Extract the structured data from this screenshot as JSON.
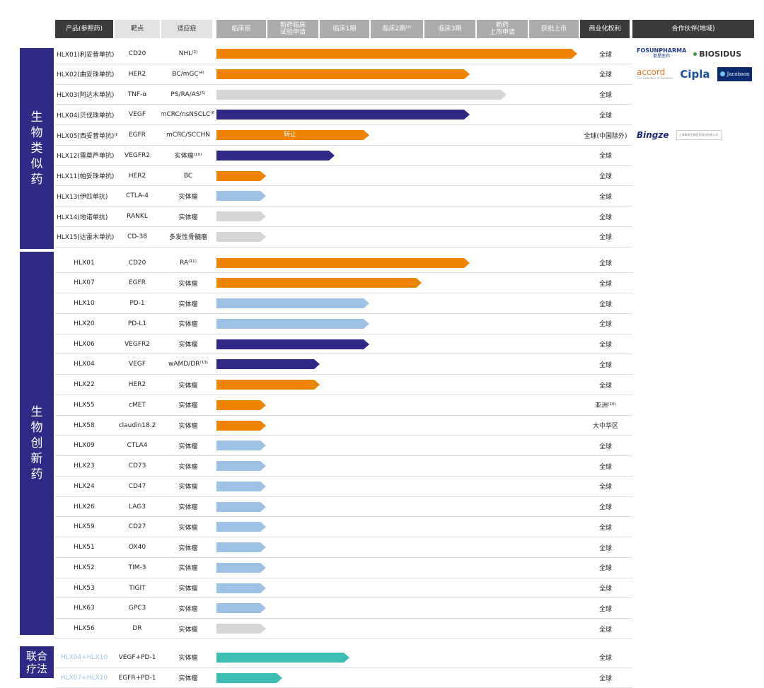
{
  "headers": [
    "产品(参照药)",
    "靶点",
    "适应症",
    "临床前",
    "新药临床\n试验申请",
    "临床1期",
    "临床2期⁽³⁾",
    "临床3期",
    "新药\n上市申请",
    "获批上市",
    "商业化权利",
    "合作伙伴(地域)"
  ],
  "categories": [
    {
      "name": "生物类似药",
      "chars": [
        "生",
        "物",
        "类",
        "似",
        "药"
      ]
    },
    {
      "name": "生物创新药",
      "chars": [
        "生",
        "物",
        "创",
        "新",
        "药"
      ]
    },
    {
      "name": "联合疗法",
      "chars": [
        "联合",
        "疗法"
      ]
    }
  ],
  "colors": {
    "orange": "#f08300",
    "navy": "#2f2887",
    "lgray": "#d5d5d5",
    "lblue": "#9ec2e6",
    "teal": "#3ebdb4",
    "category_bg": "#2e2a85",
    "combo_product_text": "#9ec2e6"
  },
  "rows": [
    {
      "product": "HLX01(利妥昔单抗)",
      "target": "CD20",
      "indication": "NHL⁽²⁾",
      "stage": 7,
      "color": "orange",
      "rights": "全球",
      "partner": "fosun_biosidus"
    },
    {
      "product": "HLX02(曲妥珠单抗)",
      "target": "HER2",
      "indication": "BC/mGC⁽⁴⁾",
      "stage": 5,
      "color": "orange",
      "rights": "全球",
      "partner": "accord_cipla_jacobson"
    },
    {
      "product": "HLX03(阿达木单抗)",
      "target": "TNF-α",
      "indication": "PS/RA/AS⁽⁵⁾",
      "stage": 6,
      "color": "lgray",
      "rights": "全球"
    },
    {
      "product": "HLX04(贝伐珠单抗)",
      "target": "VEGF",
      "indication": "mCRC/nsNSCLC⁽⁶⁾",
      "stage": 5,
      "color": "navy",
      "rights": "全球"
    },
    {
      "product": "HLX05(西妥昔单抗)⁽⁸⁾",
      "target": "EGFR",
      "indication": "mCRC/SCCHN",
      "stage": 3,
      "color": "orange",
      "rights": "全球(中国除外)",
      "bar_label": "转让",
      "partner": "bingze"
    },
    {
      "product": "HLX12(雷莫芦单抗)",
      "target": "VEGFR2",
      "indication": "实体瘤⁽¹⁰⁾",
      "stage": 2.3,
      "color": "navy",
      "rights": "全球"
    },
    {
      "product": "HLX11(帕妥珠单抗)",
      "target": "HER2",
      "indication": "BC",
      "stage": 1,
      "color": "orange",
      "rights": "全球"
    },
    {
      "product": "HLX13(伊匹单抗)",
      "target": "CTLA-4",
      "indication": "实体瘤",
      "stage": 1,
      "color": "lblue",
      "rights": "全球"
    },
    {
      "product": "HLX14(地诺单抗)",
      "target": "RANKL",
      "indication": "实体瘤",
      "stage": 1,
      "color": "lgray",
      "rights": "全球"
    },
    {
      "product": "HLX15(达雷木单抗)",
      "target": "CD-38",
      "indication": "多发性骨髓瘤",
      "stage": 1,
      "color": "lgray",
      "rights": "全球"
    },
    {
      "product": "HLX01",
      "target": "CD20",
      "indication": "RA⁽¹¹⁾",
      "stage": 5,
      "color": "orange",
      "rights": "全球"
    },
    {
      "product": "HLX07",
      "target": "EGFR",
      "indication": "实体瘤",
      "stage": 4,
      "color": "orange",
      "rights": "全球"
    },
    {
      "product": "HLX10",
      "target": "PD-1",
      "indication": "实体瘤",
      "stage": 3,
      "color": "lblue",
      "rights": "全球"
    },
    {
      "product": "HLX20",
      "target": "PD-L1",
      "indication": "实体瘤",
      "stage": 3,
      "color": "lblue",
      "rights": "全球"
    },
    {
      "product": "HLX06",
      "target": "VEGFR2",
      "indication": "实体瘤",
      "stage": 3,
      "color": "navy",
      "rights": "全球"
    },
    {
      "product": "HLX04",
      "target": "VEGF",
      "indication": "wAMD/DR⁽¹³⁾",
      "stage": 2,
      "color": "navy",
      "rights": "全球"
    },
    {
      "product": "HLX22",
      "target": "HER2",
      "indication": "实体瘤",
      "stage": 2,
      "color": "orange",
      "rights": "全球"
    },
    {
      "product": "HLX55",
      "target": "cMET",
      "indication": "实体瘤",
      "stage": 1,
      "color": "orange",
      "rights": "亚洲⁽¹⁶⁾"
    },
    {
      "product": "HLX58",
      "target": "claudin18.2",
      "indication": "实体瘤",
      "stage": 1,
      "color": "orange",
      "rights": "大中华区"
    },
    {
      "product": "HLX09",
      "target": "CTLA4",
      "indication": "实体瘤",
      "stage": 1,
      "color": "lblue",
      "rights": "全球"
    },
    {
      "product": "HLX23",
      "target": "CD73",
      "indication": "实体瘤",
      "stage": 1,
      "color": "lblue",
      "rights": "全球"
    },
    {
      "product": "HLX24",
      "target": "CD47",
      "indication": "实体瘤",
      "stage": 1,
      "color": "lblue",
      "rights": "全球"
    },
    {
      "product": "HLX26",
      "target": "LAG3",
      "indication": "实体瘤",
      "stage": 1,
      "color": "lblue",
      "rights": "全球"
    },
    {
      "product": "HLX59",
      "target": "CD27",
      "indication": "实体瘤",
      "stage": 1,
      "color": "lblue",
      "rights": "全球"
    },
    {
      "product": "HLX51",
      "target": "OX40",
      "indication": "实体瘤",
      "stage": 1,
      "color": "lblue",
      "rights": "全球"
    },
    {
      "product": "HLX52",
      "target": "TIM-3",
      "indication": "实体瘤",
      "stage": 1,
      "color": "lblue",
      "rights": "全球"
    },
    {
      "product": "HLX53",
      "target": "TIGIT",
      "indication": "实体瘤",
      "stage": 1,
      "color": "lblue",
      "rights": "全球"
    },
    {
      "product": "HLX63",
      "target": "GPC3",
      "indication": "实体瘤",
      "stage": 1,
      "color": "lblue",
      "rights": "全球"
    },
    {
      "product": "HLX56",
      "target": "DR",
      "indication": "实体瘤",
      "stage": 1,
      "color": "lgray",
      "rights": "全球"
    },
    {
      "product": "HLX04+HLX10",
      "target": "VEGF+PD-1",
      "indication": "实体瘤",
      "stage": 2.6,
      "color": "teal",
      "rights": "全球",
      "combo": true
    },
    {
      "product": "HLX07+HLX10",
      "target": "EGFR+PD-1",
      "indication": "实体瘤",
      "stage": 1.3,
      "color": "teal",
      "rights": "全球",
      "combo": true
    }
  ],
  "partners": {
    "fosun_biosidus": {
      "fosun_line1": "FOSUNPHARMA",
      "fosun_line2": "复星医药",
      "biosidus": "BIOSIDUS"
    },
    "accord_cipla_jacobson": {
      "accord": "accord",
      "accord_sub": "The Evolution of Generics",
      "cipla": "Cipla",
      "jacobson": "Jacobson"
    },
    "bingze": {
      "name": "Bingze",
      "sub": "上海秉泽生物医药科技有限公司"
    }
  }
}
